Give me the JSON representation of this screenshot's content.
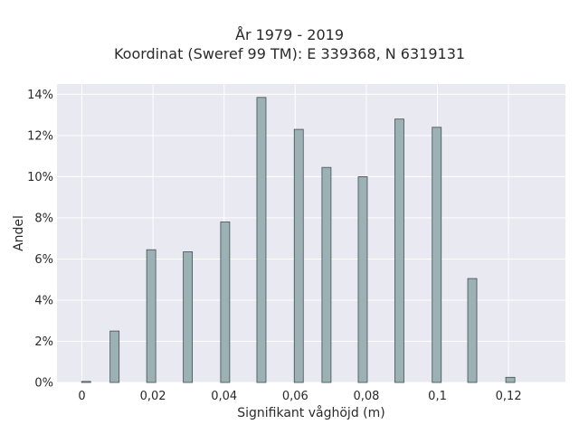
{
  "chart_data": {
    "type": "bar",
    "title": "År 1979 - 2019",
    "subtitle": "Koordinat (Sweref 99 TM): E 339368, N 6319131",
    "xlabel": "Signifikant våghöjd (m)",
    "ylabel": "Andel",
    "xlim": [
      -0.007,
      0.136
    ],
    "ylim": [
      0,
      14.5
    ],
    "grid": true,
    "x_ticks": [
      {
        "value": 0,
        "label": "0"
      },
      {
        "value": 0.02,
        "label": "0,02"
      },
      {
        "value": 0.04,
        "label": "0,04"
      },
      {
        "value": 0.06,
        "label": "0,06"
      },
      {
        "value": 0.08,
        "label": "0,08"
      },
      {
        "value": 0.1,
        "label": "0,1"
      },
      {
        "value": 0.12,
        "label": "0,12"
      }
    ],
    "y_ticks": [
      {
        "value": 0,
        "label": "0%"
      },
      {
        "value": 2,
        "label": "2%"
      },
      {
        "value": 4,
        "label": "4%"
      },
      {
        "value": 6,
        "label": "6%"
      },
      {
        "value": 8,
        "label": "8%"
      },
      {
        "value": 10,
        "label": "10%"
      },
      {
        "value": 12,
        "label": "12%"
      },
      {
        "value": 14,
        "label": "14%"
      }
    ],
    "x": [
      0.0012,
      0.0092,
      0.0195,
      0.0298,
      0.0403,
      0.0505,
      0.061,
      0.0688,
      0.079,
      0.0893,
      0.0998,
      0.1098,
      0.1205
    ],
    "values": [
      0.05,
      2.5,
      6.45,
      6.35,
      7.8,
      13.85,
      12.3,
      10.45,
      10.0,
      12.8,
      12.4,
      5.05,
      0.25
    ],
    "bar_color": "#9cb1b3",
    "bar_edge_color": "#3f4f50",
    "background_color": "#e9e9f1",
    "grid_color": "#ffffff"
  }
}
